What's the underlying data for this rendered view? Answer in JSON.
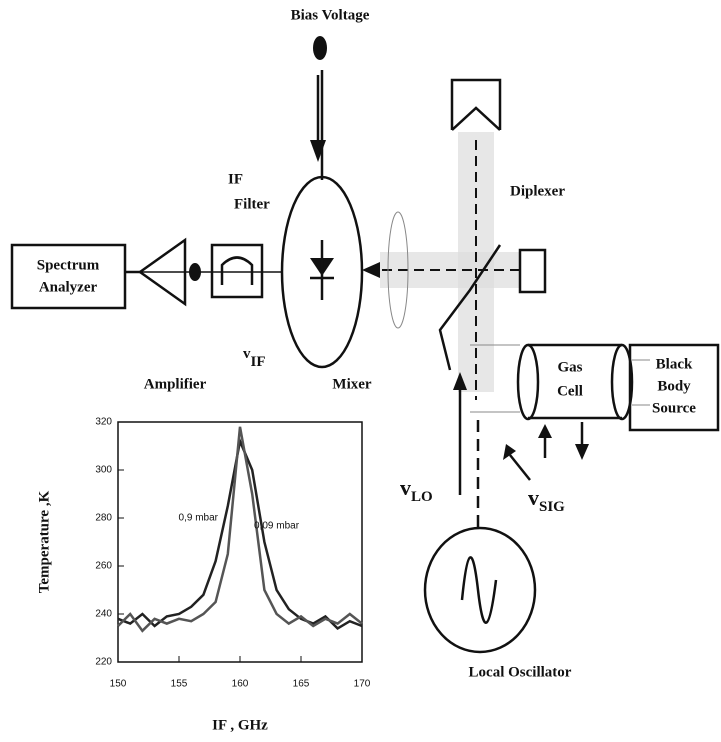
{
  "labels": {
    "bias_voltage": "Bias Voltage",
    "if_filter": [
      "IF",
      "Filter"
    ],
    "diplexer": "Diplexer",
    "spectrum_analyzer": [
      "Spectrum",
      "Analyzer"
    ],
    "amplifier": "Amplifier",
    "mixer": "Mixer",
    "nu_if": {
      "symbol": "v",
      "subscript": "IF"
    },
    "nu_lo": {
      "symbol": "v",
      "subscript": "LO"
    },
    "nu_sig": {
      "symbol": "v",
      "subscript": "SIG"
    },
    "gas_cell": [
      "Gas",
      "Cell"
    ],
    "black_body": [
      "Black",
      "Body",
      "Source"
    ],
    "local_oscillator": "Local Oscillator"
  },
  "chart_data": {
    "type": "line",
    "x_label": "IF , GHz",
    "y_label": "Temperature ,K",
    "x": [
      150,
      151,
      152,
      153,
      154,
      155,
      156,
      157,
      158,
      159,
      160,
      161,
      162,
      163,
      164,
      165,
      166,
      167,
      168,
      169,
      170
    ],
    "series": [
      {
        "name": "0,9 mbar",
        "color": "#222222",
        "values": [
          238,
          236,
          240,
          235,
          239,
          240,
          243,
          248,
          262,
          285,
          312,
          300,
          270,
          250,
          242,
          238,
          236,
          239,
          234,
          237,
          235
        ]
      },
      {
        "name": "0,09 mbar",
        "color": "#555555",
        "values": [
          235,
          240,
          233,
          238,
          236,
          238,
          237,
          240,
          245,
          265,
          318,
          290,
          250,
          240,
          236,
          239,
          235,
          238,
          236,
          240,
          236
        ]
      }
    ],
    "xlim": [
      150,
      170
    ],
    "xticks": [
      150,
      155,
      160,
      165,
      170
    ],
    "ylim": [
      220,
      320
    ],
    "yticks": [
      220,
      240,
      260,
      280,
      300,
      320
    ]
  }
}
